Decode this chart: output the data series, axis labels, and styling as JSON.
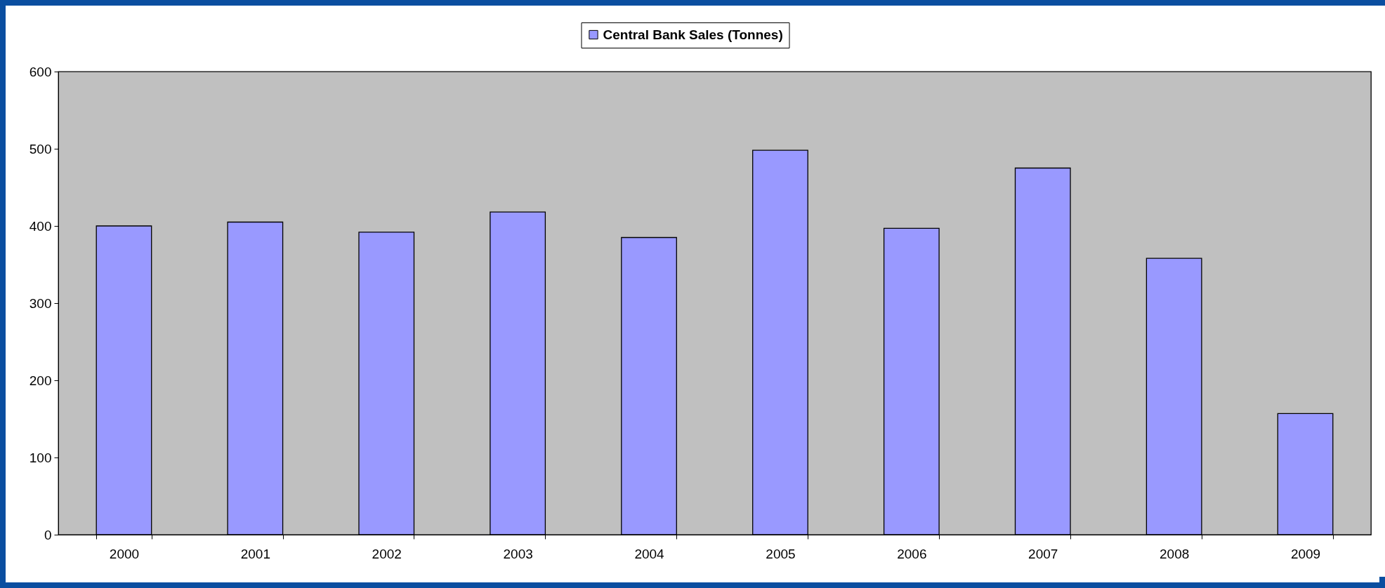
{
  "chart_data": {
    "type": "bar",
    "categories": [
      "2000",
      "2001",
      "2002",
      "2003",
      "2004",
      "2005",
      "2006",
      "2007",
      "2008",
      "2009"
    ],
    "series": [
      {
        "name": "Central Bank Sales (Tonnes)",
        "color": "#9999ff",
        "values": [
          400,
          405,
          392,
          418,
          385,
          498,
          397,
          475,
          358,
          157
        ]
      }
    ],
    "ylim": [
      0,
      600
    ],
    "yticks": [
      0,
      100,
      200,
      300,
      400,
      500,
      600
    ],
    "grid": false,
    "legend": "top"
  }
}
